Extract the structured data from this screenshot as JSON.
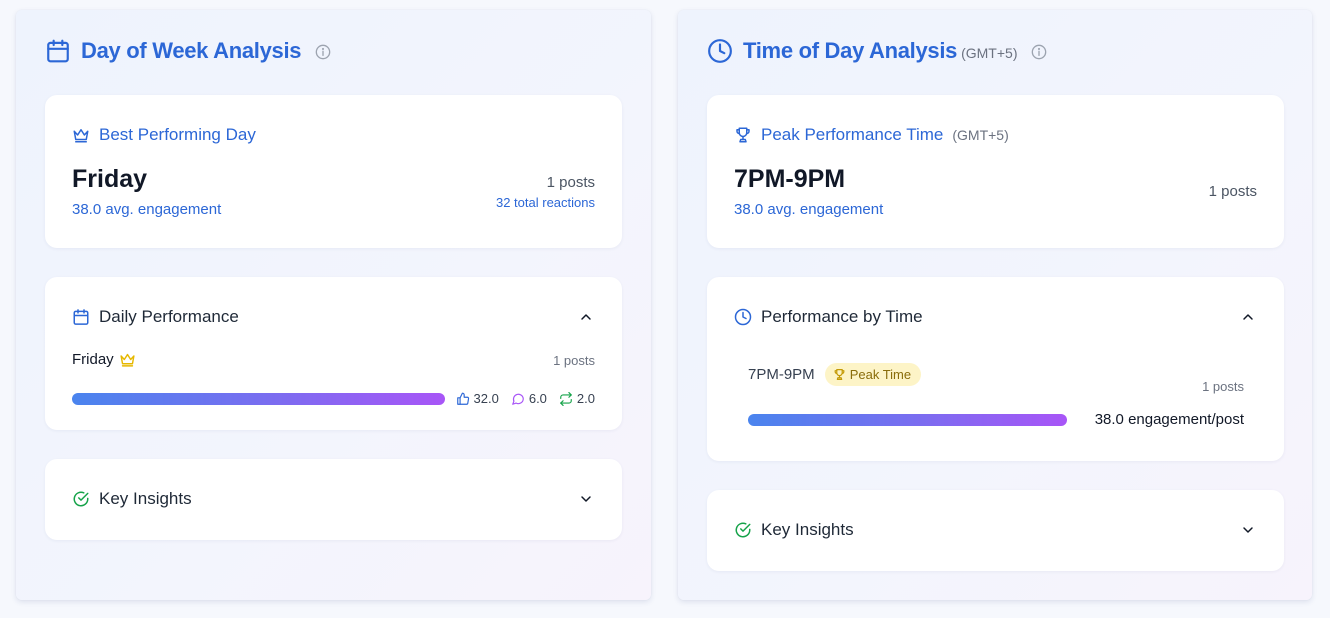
{
  "day_panel": {
    "title": "Day of Week Analysis",
    "best_card": {
      "title": "Best Performing Day",
      "value": "Friday",
      "avg": "38.0 avg. engagement",
      "posts": "1 posts",
      "reactions": "32 total reactions"
    },
    "daily_card": {
      "title": "Daily Performance",
      "rows": [
        {
          "label": "Friday",
          "posts": "1 posts",
          "bar_fraction": 1.0,
          "likes": "32.0",
          "comments": "6.0",
          "shares": "2.0"
        }
      ]
    },
    "insights_card": {
      "title": "Key Insights"
    }
  },
  "time_panel": {
    "title": "Time of Day Analysis",
    "subtitle": "(GMT+5)",
    "peak_card": {
      "title": "Peak Performance Time",
      "subtitle": "(GMT+5)",
      "value": "7PM-9PM",
      "avg": "38.0 avg. engagement",
      "posts": "1 posts"
    },
    "time_card": {
      "title": "Performance by Time",
      "rows": [
        {
          "label": "7PM-9PM",
          "badge": "Peak Time",
          "posts": "1 posts",
          "bar_fraction": 1.0,
          "engagement": "38.0 engagement/post"
        }
      ]
    },
    "insights_card": {
      "title": "Key Insights"
    }
  },
  "colors": {
    "accent": "#2c67d6",
    "check_green": "#16a34a",
    "crown_gold": "#e6b800",
    "bar_start": "#4a84ee",
    "bar_end": "#a855f7",
    "badge_bg": "#fdf4c7"
  },
  "icons": {
    "day_header": "calendar-icon",
    "time_header": "clock-icon",
    "info": "info-icon",
    "best_day": "crown-icon",
    "peak_time": "trophy-icon",
    "insights": "check-circle-icon"
  }
}
